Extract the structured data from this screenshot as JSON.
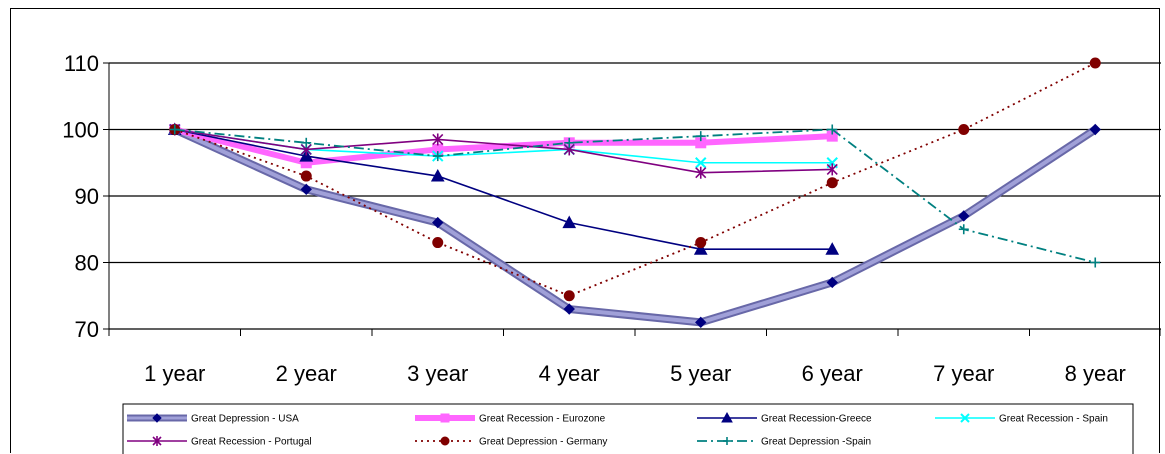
{
  "chart_data": {
    "type": "line",
    "categories": [
      "1 year",
      "2 year",
      "3 year",
      "4 year",
      "5 year",
      "6 year",
      "7 year",
      "8 year"
    ],
    "ylim": [
      70,
      110
    ],
    "yticks": [
      70,
      80,
      90,
      100,
      110
    ],
    "grid": true,
    "legend_position": "bottom",
    "series": [
      {
        "name": "Great Depression - USA",
        "values": [
          100,
          91,
          86,
          73,
          71,
          77,
          87,
          100
        ],
        "color": "#8080c0",
        "marker": "diamond",
        "style": "thick"
      },
      {
        "name": "Great Recession - Eurozone",
        "values": [
          100,
          95,
          97,
          98,
          98,
          99,
          null,
          null
        ],
        "color": "#ff66ff",
        "marker": "square",
        "style": "thick"
      },
      {
        "name": "Great Recession-Greece",
        "values": [
          100,
          96,
          93,
          86,
          82,
          82,
          null,
          null
        ],
        "color": "#000080",
        "marker": "triangle",
        "style": "solid"
      },
      {
        "name": "Great Recession - Spain",
        "values": [
          100,
          97,
          96,
          97,
          95,
          95,
          null,
          null
        ],
        "color": "#00ffff",
        "marker": "x",
        "style": "solid"
      },
      {
        "name": "Great Recession - Portugal",
        "values": [
          100,
          97,
          98.5,
          97,
          93.5,
          94,
          null,
          null
        ],
        "color": "#800080",
        "marker": "star",
        "style": "solid"
      },
      {
        "name": "Great Depression - Germany",
        "values": [
          100,
          93,
          83,
          75,
          83,
          92,
          100,
          110
        ],
        "color": "#800000",
        "marker": "circle",
        "style": "dotted"
      },
      {
        "name": "Great Depression -Spain",
        "values": [
          100,
          98,
          96,
          98,
          99,
          100,
          85,
          80
        ],
        "color": "#008080",
        "marker": "plus",
        "style": "dashdot"
      }
    ]
  }
}
